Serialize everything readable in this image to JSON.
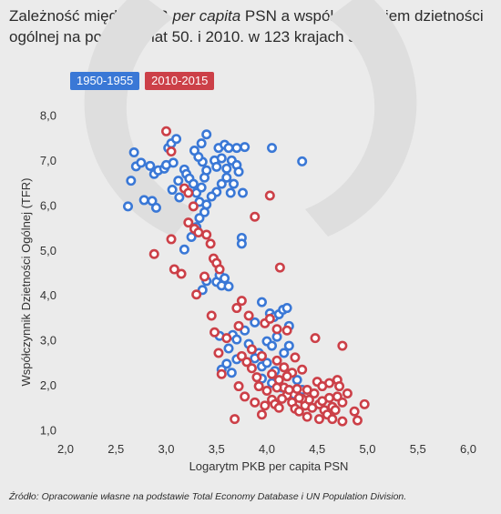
{
  "title": {
    "part1": "Zależność między PKB ",
    "italic": "per capita",
    "part2": " PSN a współczynnikiem dzietności ogólnej na początku lat 50. i 2010. w 123 krajach świata"
  },
  "source": "Źródło: Opracowanie własne na podstawie Total Economy Database i UN Population Division.",
  "colors": {
    "blue": "#3a78d6",
    "red": "#cc4048",
    "background": "#ebebeb",
    "watermark": "#dedede"
  },
  "chart_data": {
    "type": "scatter",
    "xlabel": "Logarytm PKB per capita PSN",
    "ylabel": "Współczynnik Dzietności Ogólnej (TFR)",
    "xlim": [
      2.0,
      6.0
    ],
    "ylim": [
      1.0,
      8.0
    ],
    "xticks": [
      "2,0",
      "2,5",
      "3,0",
      "3,5",
      "4,0",
      "4,5",
      "5,0",
      "5,5",
      "6,0"
    ],
    "yticks": [
      "1,0",
      "2,0",
      "3,0",
      "4,0",
      "5,0",
      "6,0",
      "7,0",
      "8,0"
    ],
    "grid": false,
    "legend": "top-left",
    "series": [
      {
        "name": "1950-1955",
        "color": "#3a78d6",
        "points": [
          [
            2.68,
            7.18
          ],
          [
            2.7,
            6.87
          ],
          [
            2.75,
            6.95
          ],
          [
            2.65,
            6.55
          ],
          [
            2.62,
            5.98
          ],
          [
            2.78,
            6.12
          ],
          [
            2.86,
            6.1
          ],
          [
            2.9,
            5.95
          ],
          [
            2.84,
            6.88
          ],
          [
            2.88,
            6.7
          ],
          [
            2.92,
            6.78
          ],
          [
            2.98,
            6.82
          ],
          [
            3.0,
            6.9
          ],
          [
            3.02,
            7.28
          ],
          [
            3.05,
            7.38
          ],
          [
            3.1,
            7.48
          ],
          [
            3.07,
            6.95
          ],
          [
            3.06,
            6.35
          ],
          [
            3.12,
            6.55
          ],
          [
            3.13,
            6.18
          ],
          [
            3.18,
            6.8
          ],
          [
            3.2,
            6.7
          ],
          [
            3.23,
            6.6
          ],
          [
            3.27,
            6.48
          ],
          [
            3.3,
            6.28
          ],
          [
            3.33,
            6.08
          ],
          [
            3.35,
            6.4
          ],
          [
            3.38,
            6.62
          ],
          [
            3.4,
            6.78
          ],
          [
            3.36,
            6.97
          ],
          [
            3.32,
            7.08
          ],
          [
            3.28,
            7.22
          ],
          [
            3.35,
            7.38
          ],
          [
            3.4,
            7.58
          ],
          [
            3.48,
            7.0
          ],
          [
            3.5,
            6.86
          ],
          [
            3.55,
            7.05
          ],
          [
            3.52,
            7.28
          ],
          [
            3.58,
            7.35
          ],
          [
            3.62,
            7.28
          ],
          [
            3.7,
            7.28
          ],
          [
            3.78,
            7.3
          ],
          [
            3.65,
            7.0
          ],
          [
            3.7,
            6.9
          ],
          [
            3.72,
            6.75
          ],
          [
            3.6,
            6.82
          ],
          [
            3.6,
            6.62
          ],
          [
            3.55,
            6.48
          ],
          [
            3.5,
            6.3
          ],
          [
            3.45,
            6.2
          ],
          [
            3.4,
            6.02
          ],
          [
            3.38,
            5.85
          ],
          [
            3.33,
            5.72
          ],
          [
            3.3,
            5.52
          ],
          [
            3.25,
            5.3
          ],
          [
            3.18,
            5.02
          ],
          [
            3.64,
            6.28
          ],
          [
            3.67,
            6.48
          ],
          [
            3.76,
            6.28
          ],
          [
            3.75,
            5.28
          ],
          [
            3.75,
            5.15
          ],
          [
            4.05,
            7.28
          ],
          [
            4.35,
            6.98
          ],
          [
            3.5,
            4.3
          ],
          [
            3.53,
            4.45
          ],
          [
            3.58,
            4.38
          ],
          [
            3.55,
            4.22
          ],
          [
            3.62,
            4.2
          ],
          [
            3.36,
            4.12
          ],
          [
            3.4,
            4.32
          ],
          [
            3.88,
            3.4
          ],
          [
            3.95,
            3.85
          ],
          [
            4.03,
            3.6
          ],
          [
            4.07,
            3.52
          ],
          [
            4.12,
            3.58
          ],
          [
            4.16,
            3.68
          ],
          [
            4.2,
            3.72
          ],
          [
            4.22,
            3.32
          ],
          [
            4.1,
            3.08
          ],
          [
            4.0,
            2.98
          ],
          [
            4.05,
            2.88
          ],
          [
            3.92,
            2.72
          ],
          [
            3.88,
            2.6
          ],
          [
            3.95,
            2.42
          ],
          [
            4.0,
            2.5
          ],
          [
            4.08,
            2.32
          ],
          [
            4.17,
            2.72
          ],
          [
            4.22,
            2.88
          ],
          [
            3.78,
            3.22
          ],
          [
            3.66,
            3.12
          ],
          [
            3.7,
            3.02
          ],
          [
            3.53,
            3.1
          ],
          [
            3.62,
            2.82
          ],
          [
            3.7,
            2.58
          ],
          [
            3.6,
            2.48
          ],
          [
            3.55,
            2.35
          ],
          [
            3.65,
            2.28
          ],
          [
            3.82,
            2.92
          ],
          [
            4.3,
            2.12
          ],
          [
            4.35,
            1.9
          ],
          [
            4.27,
            1.8
          ],
          [
            4.15,
            1.95
          ],
          [
            4.05,
            2.05
          ],
          [
            3.95,
            2.15
          ]
        ]
      },
      {
        "name": "2010-2015",
        "color": "#cc4048",
        "points": [
          [
            3.0,
            7.65
          ],
          [
            3.05,
            7.2
          ],
          [
            3.18,
            6.38
          ],
          [
            3.22,
            6.28
          ],
          [
            3.27,
            5.98
          ],
          [
            3.22,
            5.62
          ],
          [
            3.28,
            5.48
          ],
          [
            3.32,
            5.4
          ],
          [
            3.4,
            5.35
          ],
          [
            3.44,
            5.15
          ],
          [
            3.47,
            4.82
          ],
          [
            3.05,
            5.25
          ],
          [
            2.88,
            4.92
          ],
          [
            3.08,
            4.58
          ],
          [
            3.15,
            4.48
          ],
          [
            3.38,
            4.42
          ],
          [
            3.5,
            4.72
          ],
          [
            3.53,
            4.58
          ],
          [
            3.3,
            4.02
          ],
          [
            3.88,
            5.75
          ],
          [
            4.03,
            6.22
          ],
          [
            4.13,
            4.62
          ],
          [
            3.7,
            3.72
          ],
          [
            3.75,
            3.88
          ],
          [
            3.82,
            3.55
          ],
          [
            3.98,
            3.38
          ],
          [
            4.03,
            3.48
          ],
          [
            4.1,
            3.25
          ],
          [
            3.45,
            3.55
          ],
          [
            3.48,
            3.18
          ],
          [
            3.52,
            2.72
          ],
          [
            3.55,
            2.25
          ],
          [
            3.6,
            3.05
          ],
          [
            3.72,
            3.32
          ],
          [
            4.2,
            3.22
          ],
          [
            4.28,
            2.62
          ],
          [
            3.8,
            2.52
          ],
          [
            3.85,
            2.38
          ],
          [
            3.9,
            2.18
          ],
          [
            3.72,
            1.98
          ],
          [
            3.78,
            1.75
          ],
          [
            3.88,
            1.62
          ],
          [
            3.92,
            1.98
          ],
          [
            4.0,
            1.88
          ],
          [
            4.05,
            1.68
          ],
          [
            4.08,
            1.58
          ],
          [
            4.12,
            2.12
          ],
          [
            4.17,
            1.95
          ],
          [
            4.2,
            1.78
          ],
          [
            4.25,
            1.62
          ],
          [
            4.28,
            1.48
          ],
          [
            4.32,
            1.42
          ],
          [
            4.38,
            1.55
          ],
          [
            4.42,
            1.68
          ],
          [
            4.47,
            1.82
          ],
          [
            4.52,
            1.58
          ],
          [
            4.57,
            1.45
          ],
          [
            4.6,
            1.35
          ],
          [
            4.65,
            1.52
          ],
          [
            4.7,
            1.75
          ],
          [
            4.75,
            1.62
          ],
          [
            4.8,
            1.82
          ],
          [
            4.87,
            1.42
          ],
          [
            4.9,
            1.22
          ],
          [
            4.97,
            1.58
          ],
          [
            4.5,
            2.08
          ],
          [
            4.55,
            1.98
          ],
          [
            4.62,
            2.05
          ],
          [
            4.7,
            2.12
          ],
          [
            4.72,
            1.98
          ],
          [
            4.48,
            3.05
          ],
          [
            4.75,
            2.88
          ],
          [
            4.1,
            2.55
          ],
          [
            4.17,
            2.4
          ],
          [
            4.25,
            2.28
          ],
          [
            4.35,
            2.35
          ],
          [
            4.4,
            1.9
          ],
          [
            4.45,
            1.5
          ],
          [
            4.35,
            1.7
          ],
          [
            4.3,
            1.92
          ],
          [
            4.22,
            1.9
          ],
          [
            4.15,
            1.7
          ],
          [
            4.12,
            1.5
          ],
          [
            3.98,
            1.55
          ],
          [
            3.95,
            1.35
          ],
          [
            3.68,
            1.25
          ],
          [
            4.65,
            1.25
          ],
          [
            4.75,
            1.2
          ],
          [
            4.55,
            1.65
          ],
          [
            4.62,
            1.72
          ],
          [
            4.68,
            1.45
          ],
          [
            4.52,
            1.25
          ],
          [
            4.4,
            1.3
          ],
          [
            4.32,
            1.72
          ],
          [
            4.2,
            2.2
          ],
          [
            4.1,
            1.95
          ],
          [
            4.05,
            2.25
          ],
          [
            3.95,
            2.65
          ],
          [
            3.85,
            2.8
          ],
          [
            3.75,
            2.65
          ]
        ]
      }
    ]
  }
}
